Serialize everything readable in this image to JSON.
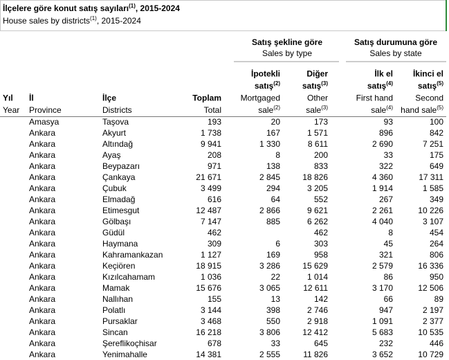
{
  "header": {
    "title": {
      "text": "İlçelere göre konut satış sayıları",
      "sup": "(1)",
      "rest": ", 2015-2024"
    },
    "subtitle": {
      "text": "House sales by districts",
      "sup": "(1)",
      "rest": ", 2015-2024"
    }
  },
  "table": {
    "groups": [
      {
        "tr": "Satış şekline göre",
        "en": "Sales by type"
      },
      {
        "tr": "Satış durumuna göre",
        "en": "Sales by state"
      }
    ],
    "columns": [
      {
        "tr": [
          {
            "text": "Yıl"
          }
        ],
        "en": [
          {
            "text": "Year"
          }
        ]
      },
      {
        "tr": [
          {
            "text": "İl"
          }
        ],
        "en": [
          {
            "text": "Province"
          }
        ]
      },
      {
        "tr": [
          {
            "text": "İlçe"
          }
        ],
        "en": [
          {
            "text": "Districts"
          }
        ]
      },
      {
        "tr": [
          {
            "text": "Toplam"
          }
        ],
        "en": [
          {
            "text": "Total"
          }
        ]
      },
      {
        "tr": [
          {
            "text": "İpotekli"
          },
          {
            "text": "satış",
            "sup": "(2)"
          }
        ],
        "en": [
          {
            "text": "Mortgaged"
          },
          {
            "text": "sale",
            "sup": "(2)"
          }
        ]
      },
      {
        "tr": [
          {
            "text": "Diğer"
          },
          {
            "text": "satış",
            "sup": "(3)"
          }
        ],
        "en": [
          {
            "text": "Other"
          },
          {
            "text": "sale",
            "sup": "(3)"
          }
        ]
      },
      {
        "tr": [
          {
            "text": "İlk el"
          },
          {
            "text": "satış",
            "sup": "(4)"
          }
        ],
        "en": [
          {
            "text": "First hand"
          },
          {
            "text": "sale",
            "sup": "(4)"
          }
        ]
      },
      {
        "tr": [
          {
            "text": "İkinci el"
          },
          {
            "text": "satış",
            "sup": "(5)"
          }
        ],
        "en": [
          {
            "text": "Second"
          },
          {
            "text": "hand sale",
            "sup": "(5)"
          }
        ]
      }
    ],
    "rows": [
      [
        "Amasya",
        "Taşova",
        "193",
        "20",
        "173",
        "93",
        "100"
      ],
      [
        "Ankara",
        "Akyurt",
        "1 738",
        "167",
        "1 571",
        "896",
        "842"
      ],
      [
        "Ankara",
        "Altındağ",
        "9 941",
        "1 330",
        "8 611",
        "2 690",
        "7 251"
      ],
      [
        "Ankara",
        "Ayaş",
        "208",
        "8",
        "200",
        "33",
        "175"
      ],
      [
        "Ankara",
        "Beypazarı",
        "971",
        "138",
        "833",
        "322",
        "649"
      ],
      [
        "Ankara",
        "Çankaya",
        "21 671",
        "2 845",
        "18 826",
        "4 360",
        "17 311"
      ],
      [
        "Ankara",
        "Çubuk",
        "3 499",
        "294",
        "3 205",
        "1 914",
        "1 585"
      ],
      [
        "Ankara",
        "Elmadağ",
        "616",
        "64",
        "552",
        "267",
        "349"
      ],
      [
        "Ankara",
        "Etimesgut",
        "12 487",
        "2 866",
        "9 621",
        "2 261",
        "10 226"
      ],
      [
        "Ankara",
        "Gölbaşı",
        "7 147",
        "885",
        "6 262",
        "4 040",
        "3 107"
      ],
      [
        "Ankara",
        "Güdül",
        "462",
        null,
        "462",
        "8",
        "454"
      ],
      [
        "Ankara",
        "Haymana",
        "309",
        "6",
        "303",
        "45",
        "264"
      ],
      [
        "Ankara",
        "Kahramankazan",
        "1 127",
        "169",
        "958",
        "321",
        "806"
      ],
      [
        "Ankara",
        "Keçiören",
        "18 915",
        "3 286",
        "15 629",
        "2 579",
        "16 336"
      ],
      [
        "Ankara",
        "Kızılcahamam",
        "1 036",
        "22",
        "1 014",
        "86",
        "950"
      ],
      [
        "Ankara",
        "Mamak",
        "15 676",
        "3 065",
        "12 611",
        "3 170",
        "12 506"
      ],
      [
        "Ankara",
        "Nallıhan",
        "155",
        "13",
        "142",
        "66",
        "89"
      ],
      [
        "Ankara",
        "Polatlı",
        "3 144",
        "398",
        "2 746",
        "947",
        "2 197"
      ],
      [
        "Ankara",
        "Pursaklar",
        "3 468",
        "550",
        "2 918",
        "1 091",
        "2 377"
      ],
      [
        "Ankara",
        "Sincan",
        "16 218",
        "3 806",
        "12 412",
        "5 683",
        "10 535"
      ],
      [
        "Ankara",
        "Şereflikoçhisar",
        "678",
        "33",
        "645",
        "232",
        "446"
      ],
      [
        "Ankara",
        "Yenimahalle",
        "14 381",
        "2 555",
        "11 826",
        "3 652",
        "10 729"
      ]
    ]
  }
}
